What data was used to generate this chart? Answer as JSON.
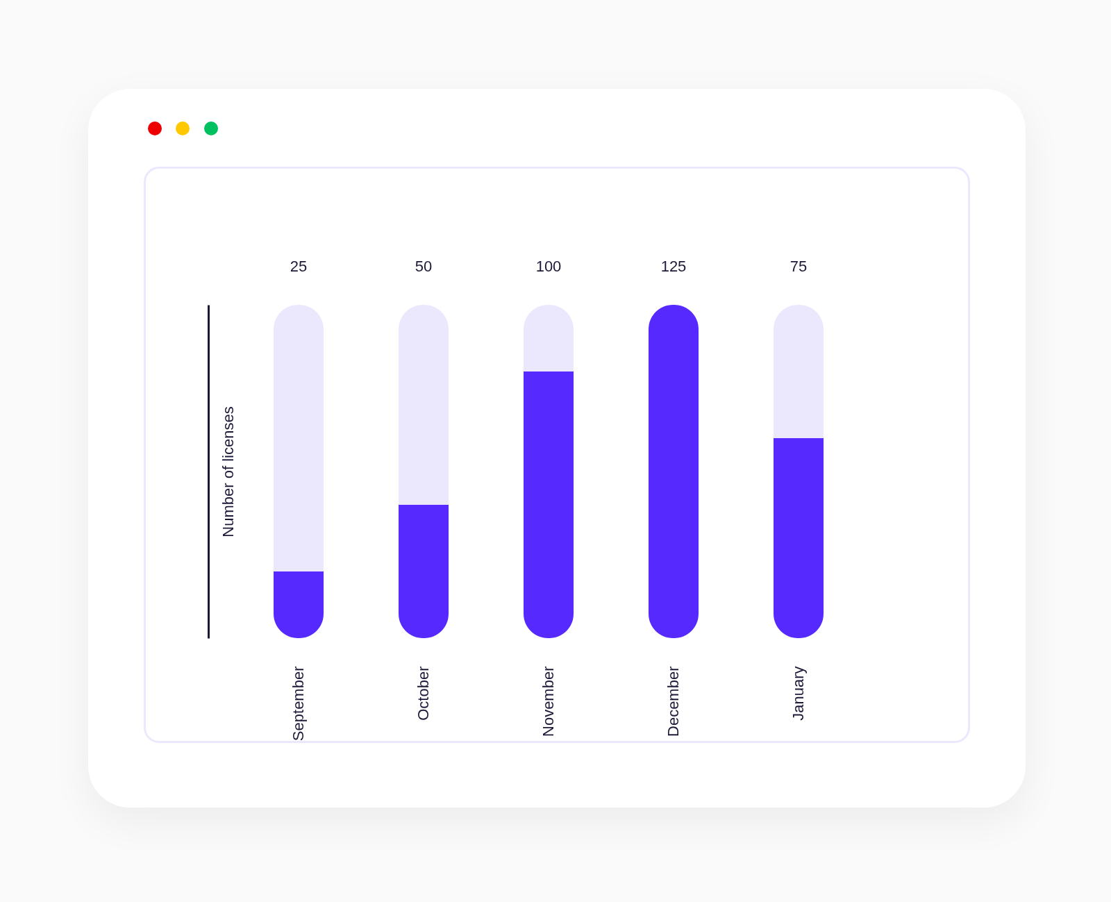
{
  "chart_data": {
    "type": "bar",
    "ylabel": "Number of licenses",
    "categories": [
      "September",
      "October",
      "November",
      "December",
      "January"
    ],
    "stacked": true,
    "ylim": [
      0,
      125
    ],
    "tick_labels": "x",
    "series": [
      {
        "color": "#5629ff",
        "values": [
          25,
          50,
          100,
          125,
          75
        ],
        "value_labels": [
          "25",
          "50",
          "100",
          "125",
          "75"
        ]
      },
      {
        "color": "#ebe8fd",
        "values": [
          100,
          75,
          25,
          0,
          50
        ]
      }
    ]
  }
}
